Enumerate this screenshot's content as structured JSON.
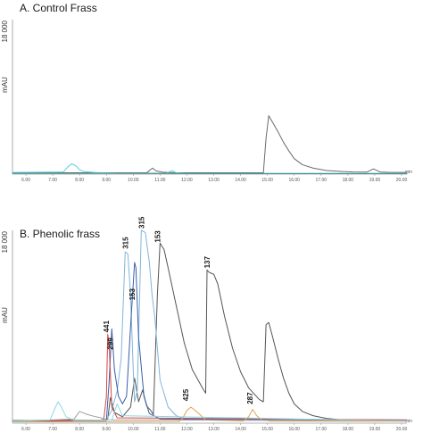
{
  "chart_data": [
    {
      "type": "line",
      "title": "A. Control Frass",
      "ylabel": "mAU",
      "y_max_label": "18 000",
      "xunit": "min",
      "xlim": [
        5.5,
        20.2
      ],
      "ylim": [
        0,
        18000
      ],
      "x_ticks": [
        "6.00",
        "7.00",
        "8.00",
        "9.00",
        "10.00",
        "11.00",
        "12.00",
        "13.00",
        "14.00",
        "15.00",
        "16.00",
        "17.00",
        "18.00",
        "19.00",
        "20.00"
      ],
      "grid": false,
      "series": [
        {
          "color": "#6b6b6b",
          "x": [
            5.5,
            10.5,
            10.72,
            10.85,
            11.1,
            11.6,
            12.0,
            14.3,
            14.85,
            14.95,
            15.05,
            15.2,
            15.4,
            15.6,
            15.8,
            16.0,
            16.3,
            16.7,
            17.2,
            17.8,
            18.2,
            18.7,
            18.95,
            19.2,
            19.5,
            20.2
          ],
          "y": [
            150,
            150,
            700,
            380,
            220,
            160,
            150,
            150,
            150,
            4200,
            6800,
            6000,
            4900,
            3700,
            2700,
            1800,
            1100,
            700,
            420,
            300,
            250,
            230,
            600,
            250,
            210,
            200
          ]
        },
        {
          "color": "#5ad0e0",
          "x": [
            5.5,
            7.4,
            7.55,
            7.7,
            7.85,
            8.0,
            8.15,
            8.6,
            9.5,
            11.2,
            11.45,
            11.6,
            12.0,
            20.2
          ],
          "y": [
            200,
            250,
            800,
            1200,
            1000,
            500,
            300,
            180,
            120,
            100,
            400,
            150,
            80,
            80
          ]
        },
        {
          "color": "#3f8f8f",
          "x": [
            5.5,
            9.0,
            13.0,
            20.2
          ],
          "y": [
            90,
            110,
            70,
            60
          ]
        }
      ]
    },
    {
      "type": "line",
      "title": "B. Phenolic frass",
      "ylabel": "mAU",
      "y_max_label": "18 000",
      "xunit": "min",
      "xlim": [
        5.5,
        20.2
      ],
      "ylim": [
        0,
        18000
      ],
      "x_ticks": [
        "6.00",
        "7.00",
        "8.00",
        "9.00",
        "10.00",
        "11.00",
        "12.00",
        "13.00",
        "14.00",
        "15.00",
        "16.00",
        "17.00",
        "18.00",
        "19.00",
        "20.00"
      ],
      "grid": false,
      "series": [
        {
          "color": "#555555",
          "x": [
            5.5,
            8.8,
            9.05,
            9.15,
            9.3,
            9.6,
            9.9,
            10.05,
            10.2,
            10.35,
            10.5,
            10.65,
            10.75,
            10.9,
            11.0,
            11.15,
            11.3,
            11.6,
            11.9,
            12.2,
            12.6,
            12.7,
            12.75,
            12.82,
            12.9,
            13.0,
            13.15,
            13.4,
            13.7,
            14.0,
            14.3,
            14.7,
            14.85,
            14.95,
            15.05,
            15.2,
            15.4,
            15.6,
            15.8,
            16.0,
            16.3,
            16.7,
            17.2,
            17.7,
            18.2,
            19.0,
            20.2
          ],
          "y": [
            250,
            300,
            400,
            2400,
            1000,
            600,
            1500,
            4200,
            2000,
            3100,
            1600,
            1200,
            800,
            12000,
            16800,
            16200,
            14500,
            11000,
            7500,
            5000,
            3200,
            2800,
            14300,
            14100,
            14000,
            13900,
            13000,
            10000,
            7000,
            4800,
            3300,
            2200,
            2000,
            9200,
            9400,
            8000,
            6000,
            4200,
            2800,
            1800,
            1100,
            700,
            450,
            320,
            260,
            220,
            200
          ]
        },
        {
          "color": "#7fb5dc",
          "x": [
            5.5,
            9.0,
            9.2,
            9.4,
            9.55,
            9.7,
            9.8,
            9.9,
            10.0,
            10.05,
            10.15,
            10.3,
            10.45,
            10.6,
            10.7,
            10.8,
            10.9,
            11.0,
            11.3,
            11.6,
            12.0,
            20.2
          ],
          "y": [
            200,
            300,
            1200,
            3000,
            6000,
            16000,
            15800,
            12000,
            5000,
            2000,
            3000,
            18000,
            17800,
            15000,
            12000,
            10000,
            7000,
            4000,
            1500,
            700,
            300,
            200
          ]
        },
        {
          "color": "#3a5ea8",
          "x": [
            5.5,
            9.0,
            9.1,
            9.2,
            9.3,
            9.45,
            9.6,
            9.75,
            9.9,
            10.05,
            10.1,
            10.2,
            10.4,
            10.6,
            11.0,
            20.2
          ],
          "y": [
            180,
            250,
            3800,
            8800,
            5000,
            2500,
            1800,
            2500,
            9000,
            15000,
            14500,
            8000,
            2500,
            900,
            400,
            300
          ]
        },
        {
          "color": "#d64545",
          "x": [
            5.5,
            8.9,
            9.0,
            9.05,
            9.1,
            9.2,
            9.4,
            20.2
          ],
          "y": [
            180,
            300,
            2500,
            8300,
            7500,
            1500,
            500,
            300
          ]
        },
        {
          "color": "#e3a34b",
          "x": [
            5.5,
            11.7,
            11.85,
            12.0,
            12.15,
            12.4,
            12.7,
            14.1,
            14.3,
            14.45,
            14.6,
            14.8,
            15.1,
            20.2
          ],
          "y": [
            120,
            150,
            500,
            1200,
            1500,
            1000,
            300,
            200,
            600,
            1300,
            700,
            300,
            200,
            180
          ]
        },
        {
          "color": "#a0a0a0",
          "x": [
            5.5,
            7.8,
            8.0,
            8.3,
            8.6,
            8.8,
            9.0,
            20.2
          ],
          "y": [
            150,
            400,
            1100,
            800,
            600,
            500,
            300,
            250
          ]
        },
        {
          "color": "#8ad8e6",
          "x": [
            5.5,
            6.9,
            7.1,
            7.2,
            7.3,
            7.5,
            7.8,
            9.2,
            9.4,
            9.6,
            20.2
          ],
          "y": [
            200,
            300,
            1500,
            2000,
            1600,
            600,
            250,
            300,
            1800,
            700,
            200
          ]
        }
      ],
      "peak_labels": [
        {
          "label": "441",
          "x": 9.0,
          "y": 8300
        },
        {
          "label": "299",
          "x": 9.15,
          "y": 6700
        },
        {
          "label": "315",
          "x": 9.7,
          "y": 16100
        },
        {
          "label": "153",
          "x": 9.95,
          "y": 11300
        },
        {
          "label": "315",
          "x": 10.3,
          "y": 18000
        },
        {
          "label": "153",
          "x": 10.9,
          "y": 16700
        },
        {
          "label": "137",
          "x": 12.75,
          "y": 14300
        },
        {
          "label": "425",
          "x": 11.95,
          "y": 1900
        },
        {
          "label": "287",
          "x": 14.35,
          "y": 1600
        }
      ]
    }
  ]
}
